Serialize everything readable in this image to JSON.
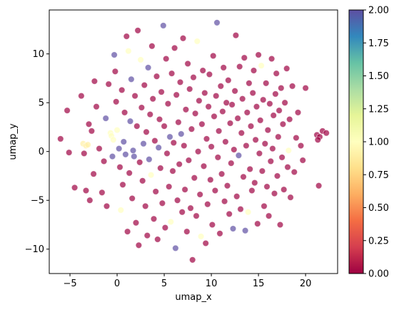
{
  "chart_data": {
    "type": "scatter",
    "title": "",
    "xlabel": "umap_x",
    "ylabel": "umap_y",
    "xlim": [
      -7.2,
      23.4
    ],
    "ylim": [
      -12.5,
      14.5
    ],
    "x_ticks": [
      -5,
      0,
      5,
      10,
      15,
      20
    ],
    "y_ticks": [
      -10,
      -5,
      0,
      5,
      10
    ],
    "grid": false,
    "legend": "none",
    "colorbar": {
      "label": "",
      "range": [
        0,
        2
      ],
      "ticks": [
        "0.00",
        "0.25",
        "0.50",
        "0.75",
        "1.00",
        "1.25",
        "1.50",
        "1.75",
        "2.00"
      ],
      "colormap": "Spectral",
      "stops": [
        "#9e0142",
        "#d53e4f",
        "#f46d43",
        "#fdae61",
        "#fee08b",
        "#ffffbf",
        "#e6f598",
        "#abdda4",
        "#66c2a5",
        "#3288bd",
        "#5e4fa2"
      ]
    },
    "point_style": {
      "opacity": 0.7,
      "edge_color": "#ffffff"
    },
    "points": [
      [
        -6.0,
        1.3,
        0
      ],
      [
        -5.3,
        4.2,
        0
      ],
      [
        -5.1,
        -0.1,
        0
      ],
      [
        -4.5,
        -3.7,
        0
      ],
      [
        -3.8,
        5.7,
        0
      ],
      [
        -3.6,
        0.8,
        0.9
      ],
      [
        -3.3,
        0.6,
        0.9
      ],
      [
        -3.1,
        0.7,
        0.9
      ],
      [
        -3.5,
        -0.2,
        0
      ],
      [
        -3.0,
        2.8,
        0
      ],
      [
        -3.3,
        -4.0,
        0
      ],
      [
        -2.9,
        -5.0,
        0
      ],
      [
        -2.7,
        2.1,
        0
      ],
      [
        -2.5,
        -2.3,
        0
      ],
      [
        -2.4,
        7.2,
        0
      ],
      [
        -2.2,
        4.6,
        0
      ],
      [
        -1.9,
        0.3,
        0
      ],
      [
        -1.6,
        -4.2,
        0
      ],
      [
        -1.4,
        -1.0,
        0
      ],
      [
        -1.2,
        3.4,
        2
      ],
      [
        -1.1,
        -5.6,
        0
      ],
      [
        -0.9,
        6.9,
        0
      ],
      [
        -0.7,
        1.9,
        1
      ],
      [
        -0.6,
        1.6,
        1
      ],
      [
        -0.4,
        1.2,
        1
      ],
      [
        -0.5,
        -0.5,
        2
      ],
      [
        -0.3,
        9.9,
        2
      ],
      [
        -0.2,
        8.2,
        0
      ],
      [
        -0.1,
        5.1,
        0
      ],
      [
        0.0,
        2.2,
        1
      ],
      [
        0.2,
        0.3,
        2
      ],
      [
        0.3,
        -1.6,
        0
      ],
      [
        0.4,
        -6.0,
        1
      ],
      [
        0.5,
        6.3,
        0
      ],
      [
        0.6,
        -3.4,
        0
      ],
      [
        0.7,
        1.0,
        2
      ],
      [
        0.8,
        4.0,
        0
      ],
      [
        0.9,
        -0.3,
        2
      ],
      [
        1.0,
        11.8,
        0
      ],
      [
        1.1,
        -8.2,
        0
      ],
      [
        1.2,
        10.3,
        1
      ],
      [
        1.3,
        -2.2,
        0
      ],
      [
        1.4,
        3.1,
        2
      ],
      [
        1.5,
        7.4,
        2
      ],
      [
        1.6,
        -4.8,
        0
      ],
      [
        1.7,
        0.1,
        2
      ],
      [
        1.8,
        -0.5,
        2
      ],
      [
        1.9,
        5.7,
        0
      ],
      [
        2.0,
        -7.3,
        0
      ],
      [
        2.1,
        2.6,
        0
      ],
      [
        2.2,
        12.4,
        0
      ],
      [
        2.3,
        -9.6,
        0
      ],
      [
        2.4,
        -1.1,
        0
      ],
      [
        2.5,
        9.4,
        1
      ],
      [
        2.6,
        4.5,
        0
      ],
      [
        2.7,
        -3.0,
        0
      ],
      [
        2.8,
        0.8,
        2
      ],
      [
        2.9,
        6.8,
        0
      ],
      [
        3.0,
        -5.6,
        0
      ],
      [
        3.1,
        2.0,
        0
      ],
      [
        3.2,
        -8.6,
        0
      ],
      [
        3.3,
        8.6,
        2
      ],
      [
        3.4,
        -0.8,
        2
      ],
      [
        3.5,
        3.8,
        0
      ],
      [
        3.6,
        -2.4,
        1
      ],
      [
        3.7,
        10.8,
        0
      ],
      [
        3.8,
        5.4,
        0
      ],
      [
        3.9,
        -6.9,
        0
      ],
      [
        4.0,
        1.1,
        0
      ],
      [
        4.1,
        -4.1,
        0
      ],
      [
        4.2,
        7.7,
        0
      ],
      [
        4.3,
        -9.0,
        0
      ],
      [
        4.4,
        0.4,
        2
      ],
      [
        4.5,
        3.3,
        0
      ],
      [
        4.6,
        -1.7,
        0
      ],
      [
        4.7,
        6.1,
        0
      ],
      [
        4.8,
        -5.3,
        0
      ],
      [
        4.9,
        12.9,
        2
      ],
      [
        5.0,
        2.6,
        0
      ],
      [
        5.1,
        -7.8,
        0
      ],
      [
        5.2,
        9.5,
        0
      ],
      [
        5.3,
        -0.2,
        0
      ],
      [
        5.4,
        4.9,
        0
      ],
      [
        5.5,
        -3.6,
        0
      ],
      [
        5.6,
        1.5,
        2
      ],
      [
        5.7,
        -7.2,
        1
      ],
      [
        5.8,
        8.0,
        0
      ],
      [
        5.9,
        -2.0,
        0
      ],
      [
        6.0,
        0.9,
        0
      ],
      [
        6.1,
        10.6,
        0
      ],
      [
        6.2,
        -9.9,
        2
      ],
      [
        6.3,
        5.8,
        0
      ],
      [
        6.4,
        -5.0,
        0
      ],
      [
        6.5,
        3.0,
        0
      ],
      [
        6.6,
        -1.3,
        0
      ],
      [
        6.7,
        7.1,
        0
      ],
      [
        6.8,
        1.8,
        2
      ],
      [
        6.9,
        -6.2,
        0
      ],
      [
        7.0,
        11.6,
        0
      ],
      [
        7.1,
        0.6,
        0
      ],
      [
        7.2,
        -3.9,
        0
      ],
      [
        7.3,
        4.3,
        0
      ],
      [
        7.4,
        -8.2,
        0
      ],
      [
        7.5,
        9.0,
        0
      ],
      [
        7.6,
        -0.9,
        0
      ],
      [
        7.7,
        6.4,
        0
      ],
      [
        7.8,
        -5.8,
        0
      ],
      [
        7.9,
        2.3,
        0
      ],
      [
        8.0,
        -11.1,
        0
      ],
      [
        8.1,
        7.6,
        0
      ],
      [
        8.2,
        -2.7,
        0
      ],
      [
        8.3,
        3.9,
        0
      ],
      [
        8.4,
        -6.6,
        0
      ],
      [
        8.5,
        11.3,
        1
      ],
      [
        8.6,
        0.0,
        0
      ],
      [
        8.7,
        5.2,
        0
      ],
      [
        8.8,
        -4.4,
        0
      ],
      [
        8.9,
        -8.7,
        1
      ],
      [
        9.0,
        2.8,
        0
      ],
      [
        9.1,
        8.3,
        0
      ],
      [
        9.2,
        -1.5,
        0
      ],
      [
        9.3,
        6.0,
        0
      ],
      [
        9.4,
        -9.4,
        0
      ],
      [
        9.5,
        1.3,
        0
      ],
      [
        9.6,
        -5.4,
        0
      ],
      [
        9.7,
        4.6,
        0
      ],
      [
        9.8,
        7.9,
        0
      ],
      [
        9.9,
        -2.9,
        0
      ],
      [
        10.0,
        0.5,
        0
      ],
      [
        10.1,
        -7.5,
        0
      ],
      [
        10.2,
        9.8,
        0
      ],
      [
        10.3,
        3.6,
        0
      ],
      [
        10.4,
        -4.0,
        0
      ],
      [
        10.5,
        5.7,
        0
      ],
      [
        10.6,
        13.2,
        2
      ],
      [
        10.7,
        -0.6,
        0
      ],
      [
        10.8,
        2.1,
        0
      ],
      [
        10.9,
        -8.4,
        0
      ],
      [
        11.0,
        6.7,
        0
      ],
      [
        11.1,
        -2.3,
        0
      ],
      [
        11.2,
        4.1,
        0
      ],
      [
        11.3,
        8.6,
        0
      ],
      [
        11.4,
        -5.1,
        0
      ],
      [
        11.5,
        1.0,
        0
      ],
      [
        11.6,
        5.0,
        0
      ],
      [
        11.7,
        -3.5,
        0
      ],
      [
        11.8,
        7.3,
        0
      ],
      [
        11.9,
        -6.4,
        0
      ],
      [
        12.0,
        2.9,
        0
      ],
      [
        12.1,
        -1.2,
        0
      ],
      [
        12.2,
        4.8,
        0
      ],
      [
        12.3,
        -7.9,
        2
      ],
      [
        12.4,
        0.2,
        0
      ],
      [
        12.5,
        6.2,
        0
      ],
      [
        12.6,
        11.9,
        0
      ],
      [
        12.7,
        -4.6,
        0
      ],
      [
        12.8,
        3.4,
        0
      ],
      [
        12.9,
        -0.4,
        2
      ],
      [
        13.0,
        8.7,
        0
      ],
      [
        13.1,
        -5.9,
        0
      ],
      [
        13.2,
        1.9,
        0
      ],
      [
        13.3,
        5.4,
        0
      ],
      [
        13.4,
        -2.6,
        0
      ],
      [
        13.5,
        9.6,
        0
      ],
      [
        13.6,
        -8.1,
        2
      ],
      [
        13.7,
        0.6,
        0
      ],
      [
        13.8,
        4.0,
        0
      ],
      [
        13.9,
        -6.2,
        1
      ],
      [
        14.0,
        7.0,
        0
      ],
      [
        14.1,
        -1.8,
        0
      ],
      [
        14.2,
        2.6,
        0
      ],
      [
        14.3,
        -4.0,
        0
      ],
      [
        14.4,
        6.0,
        0
      ],
      [
        14.5,
        8.3,
        0
      ],
      [
        14.6,
        -3.2,
        0
      ],
      [
        14.7,
        1.2,
        0
      ],
      [
        14.8,
        4.6,
        0
      ],
      [
        14.9,
        -7.4,
        0
      ],
      [
        15.0,
        9.9,
        0
      ],
      [
        15.1,
        -0.2,
        0
      ],
      [
        15.2,
        3.2,
        0
      ],
      [
        15.3,
        8.8,
        1
      ],
      [
        15.4,
        -2.0,
        0
      ],
      [
        15.5,
        5.3,
        0
      ],
      [
        15.6,
        -5.6,
        0
      ],
      [
        15.7,
        0.8,
        0
      ],
      [
        15.8,
        7.0,
        0
      ],
      [
        15.9,
        -3.6,
        0
      ],
      [
        16.0,
        2.2,
        0
      ],
      [
        16.1,
        -6.6,
        0
      ],
      [
        16.2,
        4.9,
        0
      ],
      [
        16.3,
        -1.0,
        0
      ],
      [
        16.4,
        9.5,
        0
      ],
      [
        16.5,
        0.3,
        0
      ],
      [
        16.6,
        3.7,
        0
      ],
      [
        16.7,
        -4.3,
        0
      ],
      [
        16.8,
        5.9,
        0
      ],
      [
        16.9,
        8.0,
        0
      ],
      [
        17.0,
        -2.5,
        0
      ],
      [
        17.1,
        1.5,
        0
      ],
      [
        17.2,
        4.2,
        0
      ],
      [
        17.3,
        -7.5,
        0
      ],
      [
        17.4,
        6.5,
        0
      ],
      [
        17.5,
        -0.6,
        0
      ],
      [
        17.6,
        2.8,
        0
      ],
      [
        17.7,
        -3.9,
        0
      ],
      [
        17.8,
        5.0,
        0
      ],
      [
        18.0,
        8.5,
        0
      ],
      [
        18.1,
        -1.6,
        0
      ],
      [
        18.2,
        0.1,
        1
      ],
      [
        18.3,
        3.3,
        0
      ],
      [
        18.4,
        -4.7,
        0
      ],
      [
        18.6,
        6.7,
        0
      ],
      [
        18.8,
        -2.1,
        0
      ],
      [
        19.0,
        1.4,
        0
      ],
      [
        19.2,
        4.0,
        0
      ],
      [
        19.5,
        0.6,
        0
      ],
      [
        19.7,
        -0.9,
        0
      ],
      [
        20.0,
        6.5,
        0
      ],
      [
        21.2,
        1.7,
        0
      ],
      [
        21.4,
        -3.5,
        0
      ],
      [
        21.5,
        1.5,
        0
      ],
      [
        21.8,
        2.1,
        0
      ],
      [
        22.2,
        1.9,
        0
      ],
      [
        21.3,
        1.2,
        0
      ]
    ]
  }
}
